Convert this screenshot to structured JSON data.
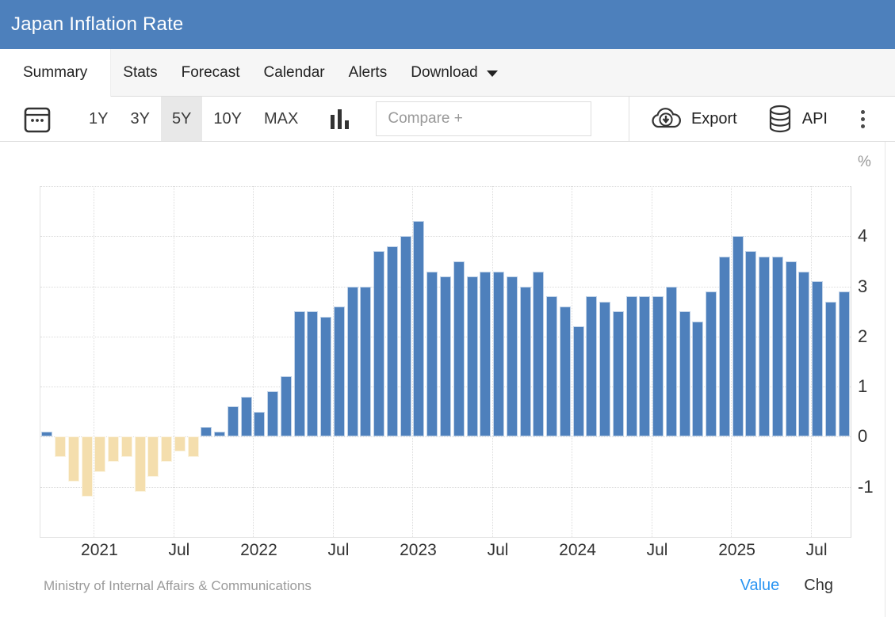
{
  "header": {
    "title": "Japan Inflation Rate",
    "bg_color": "#4d80bc"
  },
  "tabs": [
    {
      "label": "Summary",
      "active": true
    },
    {
      "label": "Stats",
      "active": false
    },
    {
      "label": "Forecast",
      "active": false
    },
    {
      "label": "Calendar",
      "active": false
    },
    {
      "label": "Alerts",
      "active": false
    },
    {
      "label": "Download",
      "active": false,
      "has_caret": true
    }
  ],
  "toolbar": {
    "calendar_icon": "calendar-icon",
    "ranges": [
      "1Y",
      "3Y",
      "5Y",
      "10Y",
      "MAX"
    ],
    "active_range": "5Y",
    "charttype_icon": "column-chart-icon",
    "compare_placeholder": "Compare +",
    "export_label": "Export",
    "export_icon": "cloud-download-icon",
    "api_label": "API",
    "api_icon": "database-icon",
    "menu_icon": "kebab-menu-icon"
  },
  "chart_data": {
    "type": "bar",
    "title": "Japan Inflation Rate",
    "unit": "%",
    "positive_color": "#4e80bc",
    "negative_color": "#f4dead",
    "ylim": [
      -2,
      5
    ],
    "yticks": [
      -1,
      0,
      1,
      2,
      3,
      4
    ],
    "grid": "dotted",
    "legend_position": "none",
    "x": [
      "2020-09",
      "2020-10",
      "2020-11",
      "2020-12",
      "2021-01",
      "2021-02",
      "2021-03",
      "2021-04",
      "2021-05",
      "2021-06",
      "2021-07",
      "2021-08",
      "2021-09",
      "2021-10",
      "2021-11",
      "2021-12",
      "2022-01",
      "2022-02",
      "2022-03",
      "2022-04",
      "2022-05",
      "2022-06",
      "2022-07",
      "2022-08",
      "2022-09",
      "2022-10",
      "2022-11",
      "2022-12",
      "2023-01",
      "2023-02",
      "2023-03",
      "2023-04",
      "2023-05",
      "2023-06",
      "2023-07",
      "2023-08",
      "2023-09",
      "2023-10",
      "2023-11",
      "2023-12",
      "2024-01",
      "2024-02",
      "2024-03",
      "2024-04",
      "2024-05",
      "2024-06",
      "2024-07",
      "2024-08",
      "2024-09",
      "2024-10",
      "2024-11",
      "2024-12",
      "2025-01",
      "2025-02",
      "2025-03",
      "2025-04",
      "2025-05",
      "2025-06",
      "2025-07",
      "2025-08",
      "2025-09"
    ],
    "values": [
      0.1,
      -0.4,
      -0.9,
      -1.2,
      -0.7,
      -0.5,
      -0.4,
      -1.1,
      -0.8,
      -0.5,
      -0.3,
      -0.4,
      0.2,
      0.1,
      0.6,
      0.8,
      0.5,
      0.9,
      1.2,
      2.5,
      2.5,
      2.4,
      2.6,
      3.0,
      3.0,
      3.7,
      3.8,
      4.0,
      4.3,
      3.3,
      3.2,
      3.5,
      3.2,
      3.3,
      3.3,
      3.2,
      3.0,
      3.3,
      2.8,
      2.6,
      2.2,
      2.8,
      2.7,
      2.5,
      2.8,
      2.8,
      2.8,
      3.0,
      2.5,
      2.3,
      2.9,
      3.6,
      4.0,
      3.7,
      3.6,
      3.6,
      3.5,
      3.3,
      3.1,
      2.7,
      2.9
    ],
    "xticks": [
      {
        "index": 4,
        "label": "2021"
      },
      {
        "index": 10,
        "label": "Jul"
      },
      {
        "index": 16,
        "label": "2022"
      },
      {
        "index": 22,
        "label": "Jul"
      },
      {
        "index": 28,
        "label": "2023"
      },
      {
        "index": 34,
        "label": "Jul"
      },
      {
        "index": 40,
        "label": "2024"
      },
      {
        "index": 46,
        "label": "Jul"
      },
      {
        "index": 52,
        "label": "2025"
      },
      {
        "index": 58,
        "label": "Jul"
      }
    ]
  },
  "footer": {
    "source": "Ministry of Internal Affairs & Communications",
    "value_label": "Value",
    "chg_label": "Chg",
    "value_color": "#2b95f2"
  }
}
